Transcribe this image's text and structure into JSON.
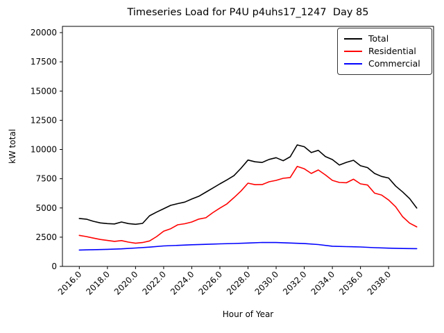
{
  "chart_data": {
    "type": "line",
    "title": "Timeseries Load for P4U p4uhs17_1247  Day 85",
    "xlabel": "Hour of Year",
    "ylabel": "kW total",
    "xlim": [
      2014.8,
      2041.2
    ],
    "ylim": [
      0,
      20535
    ],
    "grid": false,
    "xticks": [
      2016,
      2018,
      2020,
      2022,
      2024,
      2026,
      2028,
      2030,
      2032,
      2034,
      2036,
      2038
    ],
    "xtick_labels": [
      "2016.0",
      "2018.0",
      "2020.0",
      "2022.0",
      "2024.0",
      "2026.0",
      "2028.0",
      "2030.0",
      "2032.0",
      "2034.0",
      "2036.0",
      "2038.0"
    ],
    "yticks": [
      0,
      2500,
      5000,
      7500,
      10000,
      12500,
      15000,
      17500,
      20000
    ],
    "ytick_labels": [
      "0",
      "2500",
      "5000",
      "7500",
      "10000",
      "12500",
      "15000",
      "17500",
      "20000"
    ],
    "legend": {
      "position": "upper-right",
      "border_color": "#333333"
    },
    "series": [
      {
        "name": "Total",
        "color": "#000000",
        "points": [
          [
            2016.0,
            4100
          ],
          [
            2016.5,
            4040
          ],
          [
            2017.0,
            3860
          ],
          [
            2017.5,
            3720
          ],
          [
            2018.0,
            3660
          ],
          [
            2018.5,
            3630
          ],
          [
            2019.0,
            3800
          ],
          [
            2019.5,
            3660
          ],
          [
            2020.0,
            3600
          ],
          [
            2020.5,
            3680
          ],
          [
            2021.0,
            4330
          ],
          [
            2021.5,
            4650
          ],
          [
            2022.0,
            4930
          ],
          [
            2022.5,
            5220
          ],
          [
            2023.0,
            5370
          ],
          [
            2023.5,
            5500
          ],
          [
            2024.0,
            5760
          ],
          [
            2024.5,
            6000
          ],
          [
            2025.0,
            6350
          ],
          [
            2025.5,
            6700
          ],
          [
            2026.0,
            7060
          ],
          [
            2026.5,
            7400
          ],
          [
            2027.0,
            7760
          ],
          [
            2027.5,
            8400
          ],
          [
            2028.0,
            9100
          ],
          [
            2028.5,
            8950
          ],
          [
            2029.0,
            8890
          ],
          [
            2029.5,
            9150
          ],
          [
            2030.0,
            9300
          ],
          [
            2030.5,
            9040
          ],
          [
            2031.0,
            9380
          ],
          [
            2031.5,
            10390
          ],
          [
            2032.0,
            10240
          ],
          [
            2032.5,
            9740
          ],
          [
            2033.0,
            9930
          ],
          [
            2033.5,
            9400
          ],
          [
            2034.0,
            9140
          ],
          [
            2034.5,
            8670
          ],
          [
            2035.0,
            8900
          ],
          [
            2035.5,
            9080
          ],
          [
            2036.0,
            8610
          ],
          [
            2036.5,
            8450
          ],
          [
            2037.0,
            7950
          ],
          [
            2037.5,
            7700
          ],
          [
            2038.0,
            7560
          ],
          [
            2038.5,
            6870
          ],
          [
            2039.0,
            6370
          ],
          [
            2039.5,
            5800
          ],
          [
            2040.0,
            4990
          ]
        ]
      },
      {
        "name": "Residential",
        "color": "#ff0000",
        "points": [
          [
            2016.0,
            2650
          ],
          [
            2016.5,
            2550
          ],
          [
            2017.0,
            2420
          ],
          [
            2017.5,
            2300
          ],
          [
            2018.0,
            2220
          ],
          [
            2018.5,
            2140
          ],
          [
            2019.0,
            2210
          ],
          [
            2019.5,
            2080
          ],
          [
            2020.0,
            1980
          ],
          [
            2020.5,
            2040
          ],
          [
            2021.0,
            2180
          ],
          [
            2021.5,
            2550
          ],
          [
            2022.0,
            3010
          ],
          [
            2022.5,
            3220
          ],
          [
            2023.0,
            3560
          ],
          [
            2023.5,
            3650
          ],
          [
            2024.0,
            3800
          ],
          [
            2024.5,
            4050
          ],
          [
            2025.0,
            4160
          ],
          [
            2025.5,
            4600
          ],
          [
            2026.0,
            4990
          ],
          [
            2026.5,
            5350
          ],
          [
            2027.0,
            5880
          ],
          [
            2027.5,
            6450
          ],
          [
            2028.0,
            7120
          ],
          [
            2028.5,
            6990
          ],
          [
            2029.0,
            7000
          ],
          [
            2029.5,
            7240
          ],
          [
            2030.0,
            7360
          ],
          [
            2030.5,
            7540
          ],
          [
            2031.0,
            7600
          ],
          [
            2031.5,
            8550
          ],
          [
            2032.0,
            8350
          ],
          [
            2032.5,
            7950
          ],
          [
            2033.0,
            8250
          ],
          [
            2033.5,
            7830
          ],
          [
            2034.0,
            7360
          ],
          [
            2034.5,
            7180
          ],
          [
            2035.0,
            7160
          ],
          [
            2035.5,
            7460
          ],
          [
            2036.0,
            7060
          ],
          [
            2036.5,
            6960
          ],
          [
            2037.0,
            6270
          ],
          [
            2037.5,
            6110
          ],
          [
            2038.0,
            5680
          ],
          [
            2038.5,
            5100
          ],
          [
            2039.0,
            4250
          ],
          [
            2039.5,
            3700
          ],
          [
            2040.0,
            3380
          ]
        ]
      },
      {
        "name": "Commercial",
        "color": "#0000ff",
        "points": [
          [
            2016.0,
            1400
          ],
          [
            2017.0,
            1430
          ],
          [
            2018.0,
            1460
          ],
          [
            2019.0,
            1500
          ],
          [
            2020.0,
            1570
          ],
          [
            2021.0,
            1650
          ],
          [
            2022.0,
            1750
          ],
          [
            2023.0,
            1800
          ],
          [
            2024.0,
            1850
          ],
          [
            2025.0,
            1890
          ],
          [
            2026.0,
            1930
          ],
          [
            2027.0,
            1960
          ],
          [
            2028.0,
            2000
          ],
          [
            2029.0,
            2050
          ],
          [
            2030.0,
            2040
          ],
          [
            2031.0,
            2000
          ],
          [
            2032.0,
            1950
          ],
          [
            2033.0,
            1870
          ],
          [
            2034.0,
            1730
          ],
          [
            2035.0,
            1690
          ],
          [
            2036.0,
            1660
          ],
          [
            2037.0,
            1600
          ],
          [
            2038.0,
            1560
          ],
          [
            2039.0,
            1530
          ],
          [
            2040.0,
            1520
          ]
        ]
      }
    ]
  }
}
